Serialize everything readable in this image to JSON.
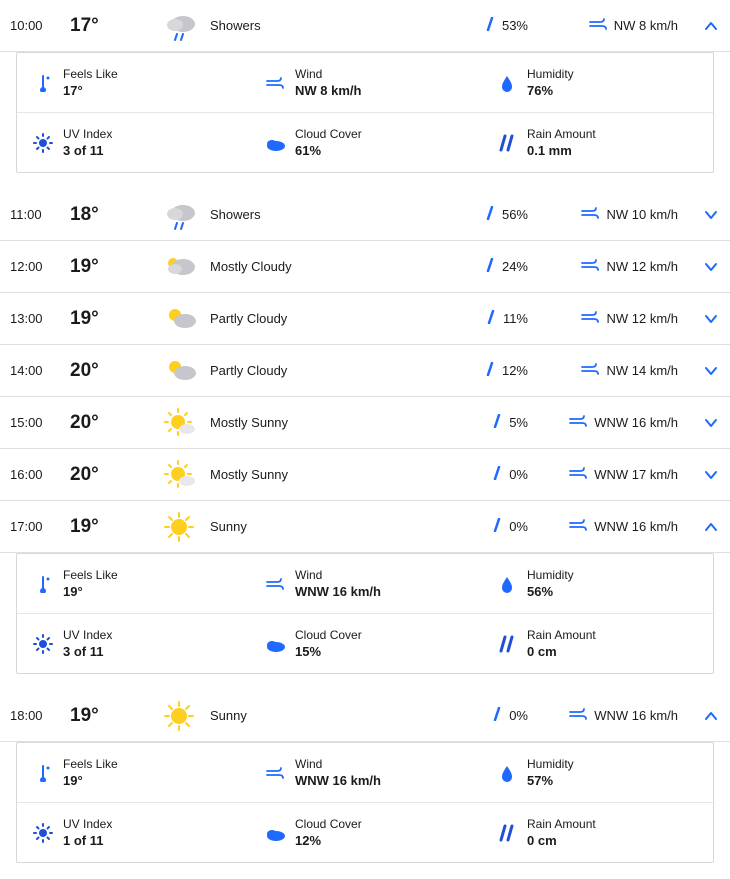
{
  "colors": {
    "blue": "#1f69ff",
    "deep_blue": "#1f4fd6",
    "sun_yellow": "#ffcf20",
    "cloud_gray": "#c6c6cc",
    "cloud_dark": "#9aa0a6",
    "text": "#1b1b1b",
    "border": "#e0e0e0"
  },
  "hours": [
    {
      "time": "10:00",
      "temp": "17°",
      "condition": "Showers",
      "icon": "showers",
      "precip": "53%",
      "wind": "NW 8 km/h",
      "expanded": true,
      "details": {
        "feels_like": "17°",
        "wind": "NW 8 km/h",
        "humidity": "76%",
        "uv": "3 of 11",
        "cloud": "61%",
        "rain": "0.1 mm"
      }
    },
    {
      "time": "11:00",
      "temp": "18°",
      "condition": "Showers",
      "icon": "showers",
      "precip": "56%",
      "wind": "NW 10 km/h",
      "expanded": false
    },
    {
      "time": "12:00",
      "temp": "19°",
      "condition": "Mostly Cloudy",
      "icon": "mostly-cloudy",
      "precip": "24%",
      "wind": "NW 12 km/h",
      "expanded": false
    },
    {
      "time": "13:00",
      "temp": "19°",
      "condition": "Partly Cloudy",
      "icon": "partly-cloudy",
      "precip": "11%",
      "wind": "NW 12 km/h",
      "expanded": false
    },
    {
      "time": "14:00",
      "temp": "20°",
      "condition": "Partly Cloudy",
      "icon": "partly-cloudy",
      "precip": "12%",
      "wind": "NW 14 km/h",
      "expanded": false
    },
    {
      "time": "15:00",
      "temp": "20°",
      "condition": "Mostly Sunny",
      "icon": "mostly-sunny",
      "precip": "5%",
      "wind": "WNW 16 km/h",
      "expanded": false
    },
    {
      "time": "16:00",
      "temp": "20°",
      "condition": "Mostly Sunny",
      "icon": "mostly-sunny",
      "precip": "0%",
      "wind": "WNW 17 km/h",
      "expanded": false
    },
    {
      "time": "17:00",
      "temp": "19°",
      "condition": "Sunny",
      "icon": "sunny",
      "precip": "0%",
      "wind": "WNW 16 km/h",
      "expanded": true,
      "details": {
        "feels_like": "19°",
        "wind": "WNW 16 km/h",
        "humidity": "56%",
        "uv": "3 of 11",
        "cloud": "15%",
        "rain": "0 cm"
      }
    },
    {
      "time": "18:00",
      "temp": "19°",
      "condition": "Sunny",
      "icon": "sunny",
      "precip": "0%",
      "wind": "WNW 16 km/h",
      "expanded": true,
      "details": {
        "feels_like": "19°",
        "wind": "WNW 16 km/h",
        "humidity": "57%",
        "uv": "1 of 11",
        "cloud": "12%",
        "rain": "0 cm"
      }
    }
  ],
  "labels": {
    "feels_like": "Feels Like",
    "wind": "Wind",
    "humidity": "Humidity",
    "uv": "UV Index",
    "cloud": "Cloud Cover",
    "rain": "Rain Amount"
  }
}
